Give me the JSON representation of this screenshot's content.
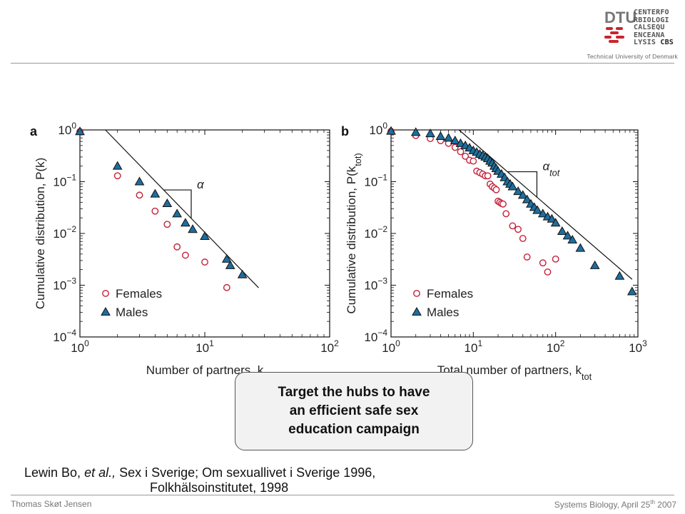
{
  "header": {
    "logo_lines": [
      "DTU",
      "CENTERFO",
      "RBIOLOGI",
      "CALSEQU",
      "ENCEANA",
      "LYSIS",
      "CBS"
    ],
    "university": "Technical University of Denmark"
  },
  "chart_data": [
    {
      "type": "scatter",
      "panel_label": "a",
      "xlabel": "Number of partners, k",
      "ylabel": "Cumulative distribution, P(k)",
      "xscale": "log",
      "yscale": "log",
      "xlim": [
        1,
        100
      ],
      "ylim": [
        0.0001,
        1
      ],
      "xticks": [
        [
          "10",
          "0"
        ],
        [
          "10",
          "1"
        ],
        [
          "10",
          "2"
        ]
      ],
      "yticks": [
        [
          "10",
          "0"
        ],
        [
          "10",
          "−1"
        ],
        [
          "10",
          "−2"
        ],
        [
          "10",
          "−3"
        ],
        [
          "10",
          "−4"
        ]
      ],
      "series": [
        {
          "name": "Females",
          "marker": "open-circle",
          "color": "#c2223a",
          "x": [
            1,
            2,
            3,
            4,
            5,
            6,
            7,
            10,
            15
          ],
          "y": [
            0.93,
            0.13,
            0.055,
            0.027,
            0.015,
            0.0055,
            0.0038,
            0.0028,
            0.0009
          ]
        },
        {
          "name": "Males",
          "marker": "filled-triangle",
          "color": "#1e6e9e",
          "x": [
            1,
            2,
            3,
            4,
            5,
            6,
            7,
            8,
            10,
            15,
            16,
            20
          ],
          "y": [
            0.93,
            0.2,
            0.1,
            0.058,
            0.038,
            0.024,
            0.016,
            0.012,
            0.0088,
            0.0032,
            0.0024,
            0.0016
          ]
        }
      ],
      "fit_line": {
        "x": [
          1.6,
          27
        ],
        "y": [
          1,
          0.00089
        ]
      },
      "slope_annotation": "α"
    },
    {
      "type": "scatter",
      "panel_label": "b",
      "xlabel": "Total number of partners, k_tot",
      "ylabel": "Cumulative distribution, P(k_tot)",
      "xscale": "log",
      "yscale": "log",
      "xlim": [
        1,
        1000
      ],
      "ylim": [
        0.0001,
        1
      ],
      "xticks": [
        [
          "10",
          "0"
        ],
        [
          "10",
          "1"
        ],
        [
          "10",
          "2"
        ],
        [
          "10",
          "3"
        ]
      ],
      "yticks": [
        [
          "10",
          "0"
        ],
        [
          "10",
          "−1"
        ],
        [
          "10",
          "−2"
        ],
        [
          "10",
          "−3"
        ],
        [
          "10",
          "−4"
        ]
      ],
      "series": [
        {
          "name": "Females",
          "marker": "open-circle",
          "color": "#c2223a",
          "x": [
            1,
            2,
            3,
            4,
            5,
            6,
            7,
            8,
            9,
            10,
            11,
            12,
            13,
            14,
            15,
            16,
            17,
            18,
            19,
            20,
            21,
            22,
            23,
            25,
            30,
            35,
            40,
            45,
            70,
            80,
            100
          ],
          "y": [
            0.94,
            0.78,
            0.68,
            0.62,
            0.55,
            0.46,
            0.38,
            0.31,
            0.26,
            0.25,
            0.16,
            0.15,
            0.14,
            0.13,
            0.13,
            0.09,
            0.08,
            0.075,
            0.07,
            0.042,
            0.04,
            0.038,
            0.037,
            0.024,
            0.014,
            0.012,
            0.008,
            0.0035,
            0.0027,
            0.0018,
            0.0032
          ]
        },
        {
          "name": "Males",
          "marker": "filled-triangle",
          "color": "#1e6e9e",
          "x": [
            1,
            2,
            3,
            4,
            5,
            6,
            7,
            8,
            9,
            10,
            11,
            12,
            13,
            14,
            15,
            16,
            17,
            18,
            19,
            20,
            22,
            24,
            26,
            28,
            30,
            35,
            40,
            45,
            50,
            55,
            60,
            70,
            80,
            90,
            100,
            120,
            140,
            160,
            200,
            300,
            600,
            850
          ],
          "y": [
            0.95,
            0.9,
            0.85,
            0.75,
            0.7,
            0.62,
            0.55,
            0.5,
            0.45,
            0.4,
            0.37,
            0.34,
            0.32,
            0.3,
            0.28,
            0.25,
            0.23,
            0.2,
            0.18,
            0.16,
            0.14,
            0.12,
            0.1,
            0.09,
            0.08,
            0.065,
            0.055,
            0.045,
            0.037,
            0.032,
            0.028,
            0.024,
            0.021,
            0.019,
            0.016,
            0.011,
            0.009,
            0.0075,
            0.0052,
            0.0024,
            0.0015,
            0.00075
          ]
        }
      ],
      "fit_line": {
        "x": [
          6.7,
          850
        ],
        "y": [
          1,
          0.0013
        ]
      },
      "slope_annotation": "α_tot"
    }
  ],
  "callout": {
    "lines": [
      "Target the hubs to have",
      "an efficient safe sex",
      "education campaign"
    ]
  },
  "citation": {
    "author": "Lewin Bo, ",
    "etal": "et al.,",
    "rest": " Sex i Sverige; Om sexuallivet i Sverige 1996,",
    "line2": "Folkhälsoinstitutet, 1998"
  },
  "footer": {
    "left": "Thomas Skøt Jensen",
    "right_prefix": "Systems Biology, April 25",
    "right_sup": "th",
    "right_suffix": " 2007"
  }
}
